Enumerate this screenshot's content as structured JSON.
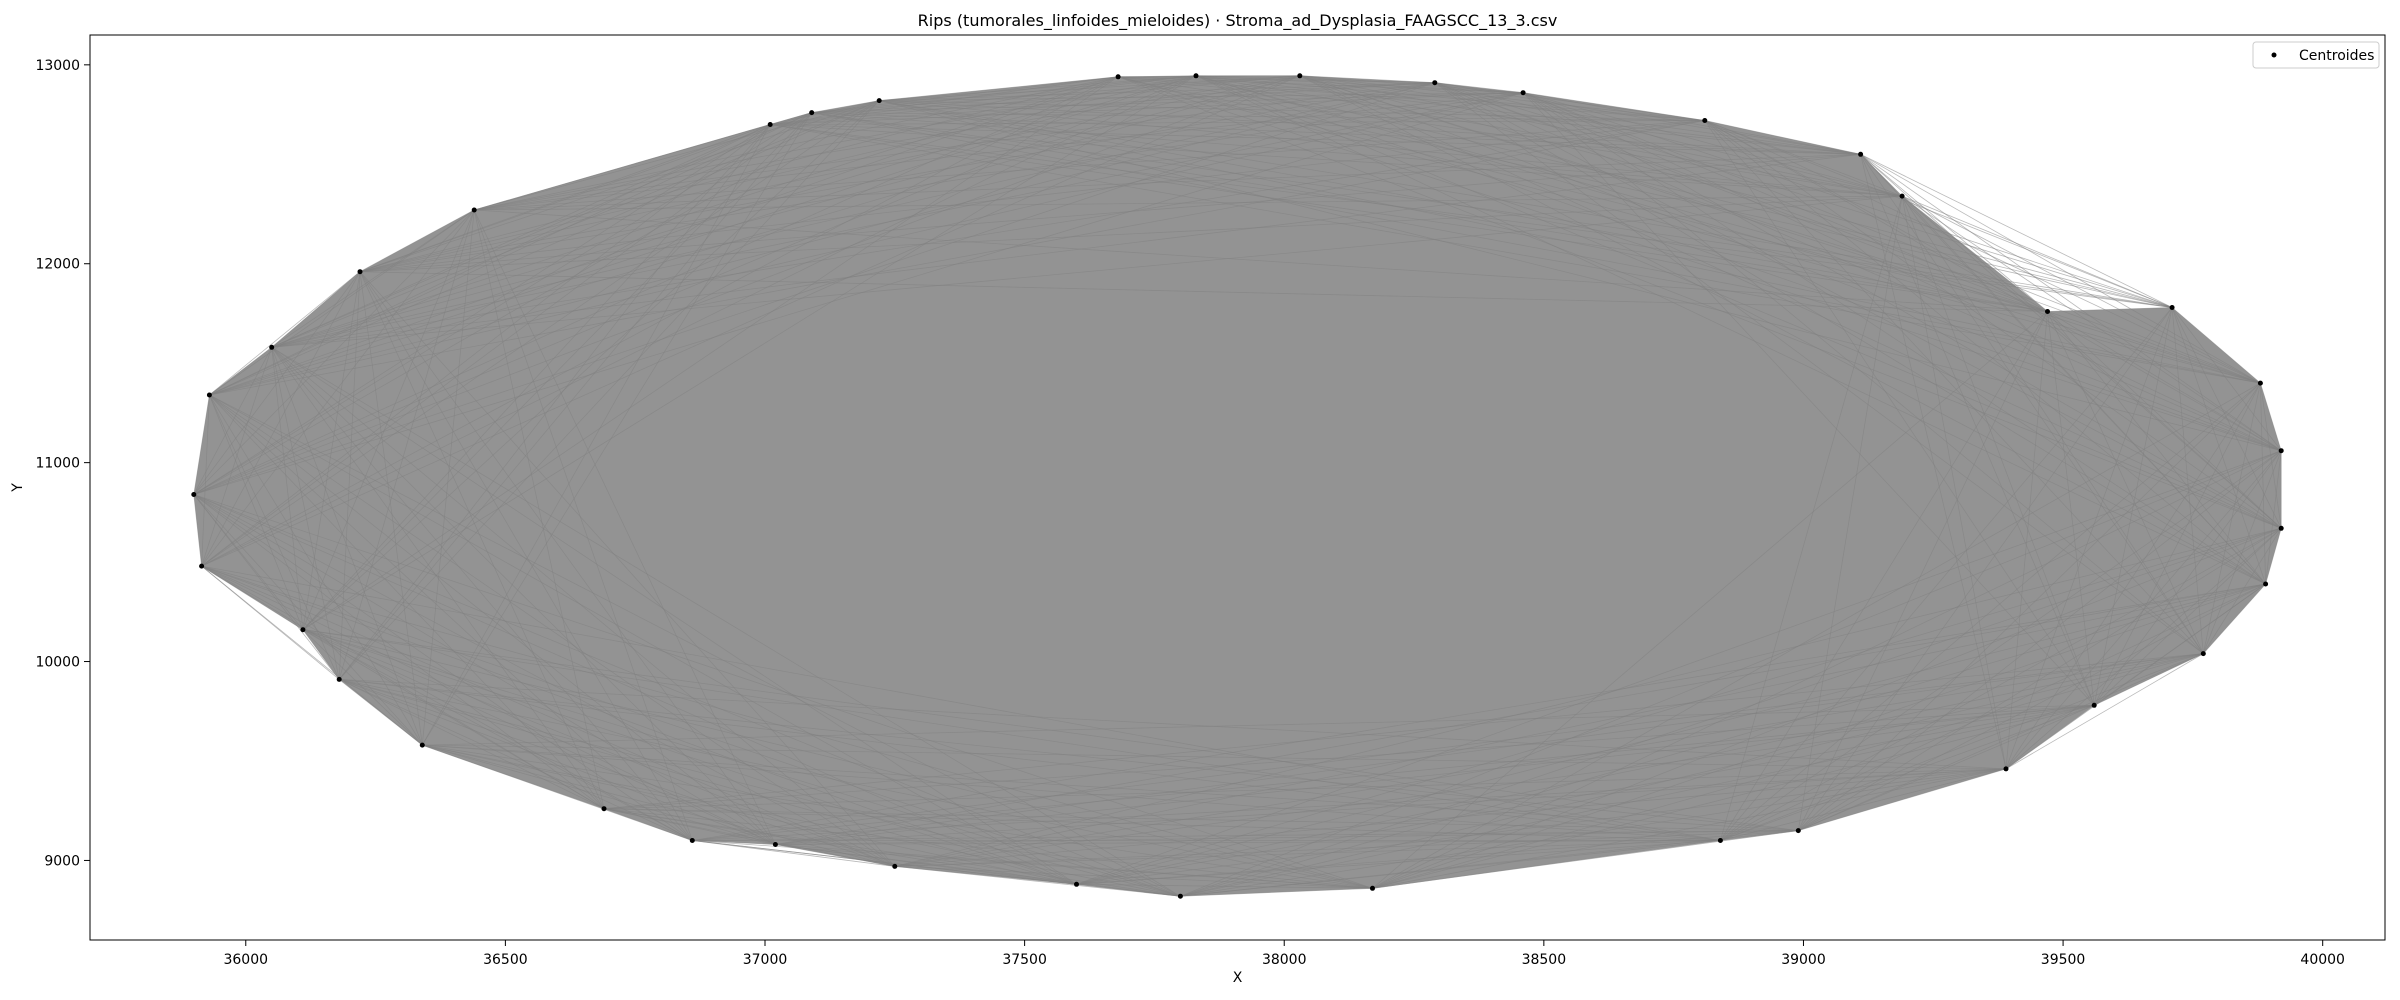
{
  "chart_data": {
    "type": "scatter",
    "title": "Rips (tumorales_linfoides_mieloides) · Stroma_ad_Dysplasia_FAAGSCC_13_3.csv",
    "xlabel": "X",
    "ylabel": "Y",
    "xlim": [
      35700,
      40120
    ],
    "ylim": [
      8600,
      13150
    ],
    "x_ticks": [
      36000,
      36500,
      37000,
      37500,
      38000,
      38500,
      39000,
      39500,
      40000
    ],
    "y_ticks": [
      9000,
      10000,
      11000,
      12000,
      13000
    ],
    "x_tick_labels": [
      "36000",
      "36500",
      "37000",
      "37500",
      "38000",
      "38500",
      "39000",
      "39500",
      "40000"
    ],
    "y_tick_labels": [
      "9000",
      "10000",
      "11000",
      "12000",
      "13000"
    ],
    "grid": false,
    "legend": {
      "placement": "top-right",
      "entries": [
        "Centroides"
      ]
    },
    "colors": {
      "edges": "#808080",
      "points": "#000000"
    },
    "series": [
      {
        "name": "Centroides",
        "points": [
          [
            35900,
            10840
          ],
          [
            35915,
            10480
          ],
          [
            35930,
            11340
          ],
          [
            36050,
            11580
          ],
          [
            36110,
            10160
          ],
          [
            36180,
            9910
          ],
          [
            36220,
            11960
          ],
          [
            36340,
            9580
          ],
          [
            36440,
            12270
          ],
          [
            36690,
            9260
          ],
          [
            36860,
            9100
          ],
          [
            37010,
            12700
          ],
          [
            37020,
            9080
          ],
          [
            37090,
            12760
          ],
          [
            37250,
            8970
          ],
          [
            37220,
            12820
          ],
          [
            37600,
            8880
          ],
          [
            37680,
            12940
          ],
          [
            37800,
            8820
          ],
          [
            37830,
            12945
          ],
          [
            38030,
            12945
          ],
          [
            38170,
            8860
          ],
          [
            38290,
            12910
          ],
          [
            38460,
            12860
          ],
          [
            38810,
            12720
          ],
          [
            38840,
            9100
          ],
          [
            38990,
            9150
          ],
          [
            39110,
            12550
          ],
          [
            39190,
            12340
          ],
          [
            39390,
            9460
          ],
          [
            39470,
            11760
          ],
          [
            39560,
            9780
          ],
          [
            39710,
            11780
          ],
          [
            39770,
            10040
          ],
          [
            39880,
            11400
          ],
          [
            39890,
            10390
          ],
          [
            39920,
            11060
          ],
          [
            39920,
            10670
          ]
        ],
        "size": 2.5
      }
    ],
    "edges_note": ""
  }
}
